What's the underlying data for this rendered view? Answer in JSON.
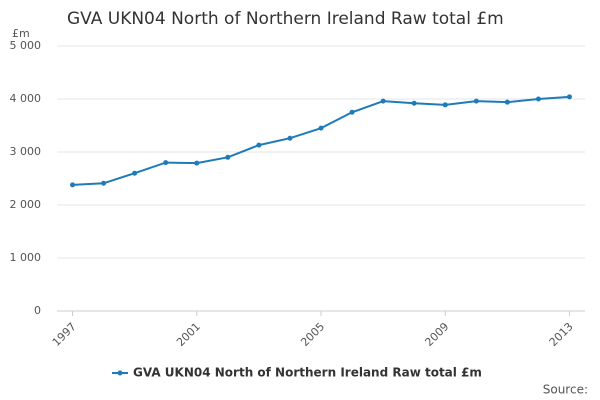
{
  "chart_data": {
    "type": "line",
    "title": "GVA UKN04 North of Northern Ireland Raw total £m",
    "y_label": "£m",
    "source": "Source:",
    "x": [
      1997,
      1998,
      1999,
      2000,
      2001,
      2002,
      2003,
      2004,
      2005,
      2006,
      2007,
      2008,
      2009,
      2010,
      2011,
      2012,
      2013
    ],
    "series": [
      {
        "name": "GVA UKN04 North of Northern Ireland Raw total £m",
        "color": "#1f7bb8",
        "values": [
          2380,
          2410,
          2600,
          2800,
          2790,
          2900,
          3130,
          3260,
          3450,
          3750,
          3960,
          3920,
          3890,
          3960,
          3940,
          4000,
          4040
        ]
      }
    ],
    "xlim": [
      1996.5,
      2013.5
    ],
    "xticks": [
      1997,
      2001,
      2005,
      2009,
      2013
    ],
    "ylim": [
      0,
      5000
    ],
    "yticks": [
      0,
      {
        "value": 1000,
        "label": "1 000"
      },
      {
        "value": 2000,
        "label": "2 000"
      },
      {
        "value": 3000,
        "label": "3 000"
      },
      {
        "value": 4000,
        "label": "4 000"
      },
      {
        "value": 5000,
        "label": "5 000"
      }
    ],
    "grid": true
  }
}
